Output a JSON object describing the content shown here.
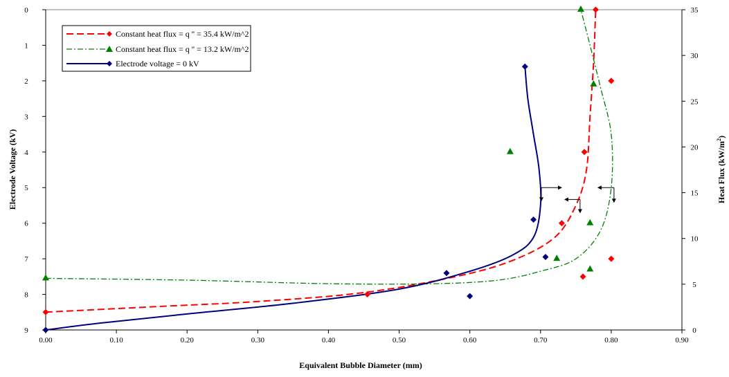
{
  "chart_data": {
    "type": "scatter",
    "xlabel": "Equivalent Bubble Diameter (mm)",
    "ylabel_left": "Electrode Voltage (kV)",
    "ylabel_right": "Heat Flux (kW/m",
    "ylabel_right_sup": "2",
    "ylabel_right_end": ")",
    "xlim": [
      0,
      0.9
    ],
    "ylim_left": [
      9,
      0
    ],
    "ylim_right": [
      0,
      35
    ],
    "x_ticks": [
      "0.00",
      "0.10",
      "0.20",
      "0.30",
      "0.40",
      "0.50",
      "0.60",
      "0.70",
      "0.80",
      "0.90"
    ],
    "y_left_ticks": [
      "0",
      "1",
      "2",
      "3",
      "4",
      "5",
      "6",
      "7",
      "8",
      "9"
    ],
    "y_right_ticks": [
      "0",
      "5",
      "10",
      "15",
      "20",
      "25",
      "30",
      "35"
    ],
    "grid": "horizontal top line only",
    "legend_position": "top-left",
    "series": [
      {
        "name": "Constant heat flux = q '' = 35.4 kW/m^2",
        "color": "#ff0000",
        "marker": "diamond",
        "line": "dashed",
        "points": [
          {
            "x": 0.0,
            "y": 8.5
          },
          {
            "x": 0.455,
            "y": 8.0
          },
          {
            "x": 0.73,
            "y": 6.0
          },
          {
            "x": 0.76,
            "y": 7.5
          },
          {
            "x": 0.8,
            "y": 7.0
          },
          {
            "x": 0.762,
            "y": 4.0
          },
          {
            "x": 0.8,
            "y": 2.0
          },
          {
            "x": 0.778,
            "y": 0.0
          }
        ],
        "curve": [
          {
            "x": 0.0,
            "y": 8.5
          },
          {
            "x": 0.15,
            "y": 8.35
          },
          {
            "x": 0.3,
            "y": 8.2
          },
          {
            "x": 0.45,
            "y": 7.95
          },
          {
            "x": 0.58,
            "y": 7.5
          },
          {
            "x": 0.66,
            "y": 7.05
          },
          {
            "x": 0.72,
            "y": 6.4
          },
          {
            "x": 0.75,
            "y": 5.5
          },
          {
            "x": 0.765,
            "y": 4.5
          },
          {
            "x": 0.77,
            "y": 3.0
          },
          {
            "x": 0.775,
            "y": 1.5
          },
          {
            "x": 0.778,
            "y": 0.0
          }
        ]
      },
      {
        "name": "Constant heat flux = q '' = 13.2 kW/m^2",
        "color": "#008000",
        "marker": "triangle",
        "line": "dash-dot",
        "points": [
          {
            "x": 0.0,
            "y": 7.55
          },
          {
            "x": 0.657,
            "y": 4.0
          },
          {
            "x": 0.723,
            "y": 7.0
          },
          {
            "x": 0.77,
            "y": 6.0
          },
          {
            "x": 0.77,
            "y": 7.3
          },
          {
            "x": 0.775,
            "y": 2.1
          },
          {
            "x": 0.757,
            "y": 0.0
          }
        ],
        "curve": [
          {
            "x": 0.0,
            "y": 7.55
          },
          {
            "x": 0.2,
            "y": 7.6
          },
          {
            "x": 0.4,
            "y": 7.7
          },
          {
            "x": 0.55,
            "y": 7.7
          },
          {
            "x": 0.64,
            "y": 7.6
          },
          {
            "x": 0.7,
            "y": 7.35
          },
          {
            "x": 0.75,
            "y": 7.0
          },
          {
            "x": 0.785,
            "y": 6.2
          },
          {
            "x": 0.8,
            "y": 5.0
          },
          {
            "x": 0.8,
            "y": 3.5
          },
          {
            "x": 0.785,
            "y": 2.2
          },
          {
            "x": 0.77,
            "y": 1.0
          },
          {
            "x": 0.757,
            "y": 0.0
          }
        ]
      },
      {
        "name": "Electrode voltage = 0 kV",
        "color": "#00007f",
        "marker": "diamond",
        "line": "solid",
        "points": [
          {
            "x": 0.0,
            "y": 9.0
          },
          {
            "x": 0.567,
            "y": 7.4
          },
          {
            "x": 0.6,
            "y": 8.05
          },
          {
            "x": 0.69,
            "y": 5.9
          },
          {
            "x": 0.707,
            "y": 6.95
          },
          {
            "x": 0.678,
            "y": 1.6
          }
        ],
        "curve": [
          {
            "x": 0.0,
            "y": 9.0
          },
          {
            "x": 0.08,
            "y": 8.8
          },
          {
            "x": 0.2,
            "y": 8.55
          },
          {
            "x": 0.35,
            "y": 8.25
          },
          {
            "x": 0.5,
            "y": 7.85
          },
          {
            "x": 0.6,
            "y": 7.35
          },
          {
            "x": 0.66,
            "y": 6.9
          },
          {
            "x": 0.69,
            "y": 6.4
          },
          {
            "x": 0.7,
            "y": 5.5
          },
          {
            "x": 0.698,
            "y": 4.5
          },
          {
            "x": 0.69,
            "y": 3.5
          },
          {
            "x": 0.682,
            "y": 2.5
          },
          {
            "x": 0.678,
            "y": 1.6
          }
        ]
      }
    ],
    "annotations": [
      {
        "type": "axis-arrows",
        "x": 0.707,
        "y": 5.0,
        "near": "Electrode voltage = 0 kV"
      },
      {
        "type": "axis-arrows",
        "x": 0.753,
        "y": 5.45,
        "near": "Constant heat flux = q '' = 35.4 kW/m^2"
      },
      {
        "type": "axis-arrows",
        "x": 0.8,
        "y": 5.0,
        "near": "Constant heat flux = q '' = 13.2 kW/m^2"
      }
    ]
  }
}
